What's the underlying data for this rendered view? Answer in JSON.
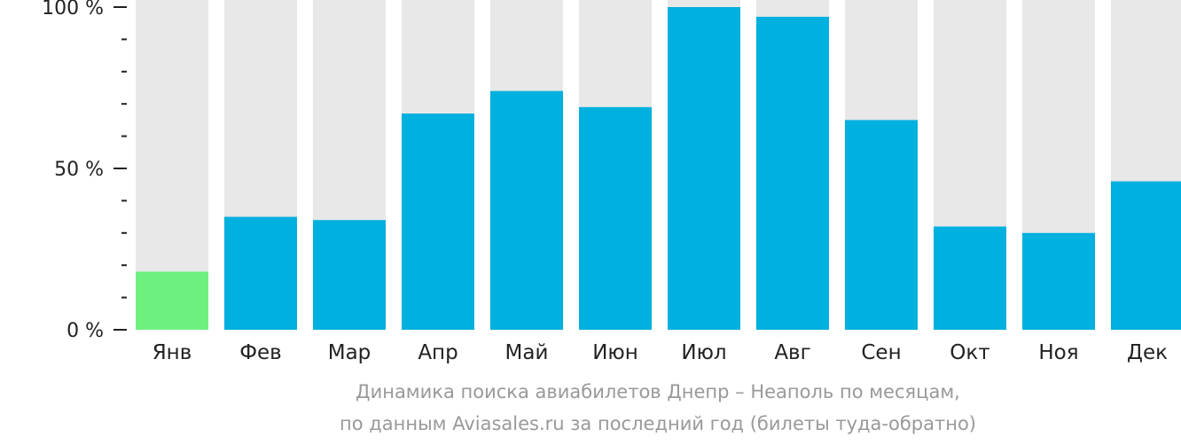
{
  "chart_data": {
    "type": "bar",
    "categories": [
      "Янв",
      "Фев",
      "Мар",
      "Апр",
      "Май",
      "Июн",
      "Июл",
      "Авг",
      "Сен",
      "Окт",
      "Ноя",
      "Дек"
    ],
    "values": [
      18,
      35,
      34,
      67,
      74,
      69,
      100,
      97,
      65,
      32,
      30,
      46
    ],
    "ylim": [
      0,
      100
    ],
    "yticks": [
      0,
      50,
      100
    ],
    "ytick_labels": [
      "0 %",
      "50 %",
      "100 %"
    ],
    "highlight_index": 0,
    "colors": {
      "bar": "#00b0de",
      "highlight": "#6ef07f",
      "background_bar": "#e8e8e8",
      "axis": "#222222",
      "caption": "#999999"
    }
  },
  "caption": {
    "line1": "Динамика поиска авиабилетов Днепр – Неаполь по месяцам,",
    "line2": "по данным Aviasales.ru за последний год (билеты туда-обратно)"
  }
}
